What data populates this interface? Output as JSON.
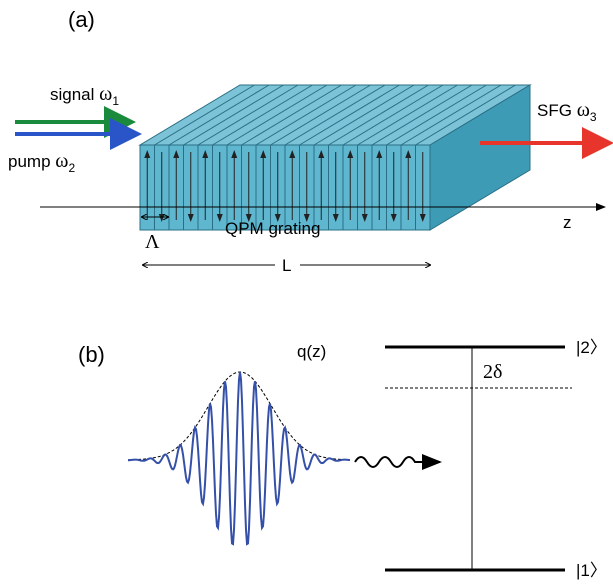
{
  "panel_a": {
    "label": "(a)",
    "signal": {
      "text": "signal",
      "symbol": "ω",
      "sub": "1"
    },
    "pump": {
      "text": "pump",
      "symbol": "ω",
      "sub": "2"
    },
    "sfg": {
      "text": "SFG",
      "symbol": "ω",
      "sub": "3"
    },
    "period": "Λ",
    "grating": "QPM grating",
    "length": "L",
    "axis": "z"
  },
  "panel_b": {
    "label": "(b)",
    "pulse": "q(z)",
    "detuning": "2δ",
    "upper_level": "|2〉",
    "lower_level": "|1〉"
  }
}
